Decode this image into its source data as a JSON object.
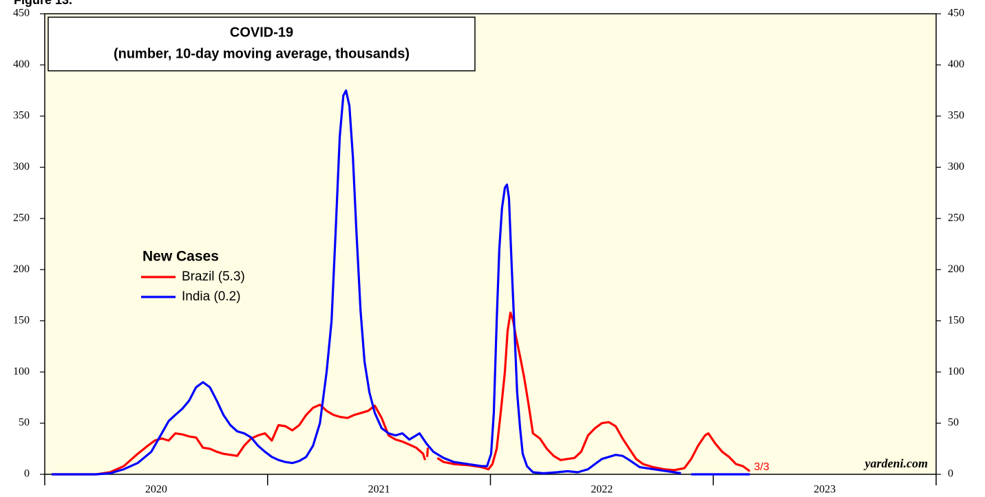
{
  "chart_data": {
    "type": "line",
    "figure_label": "Figure 13.",
    "title": "COVID-19",
    "subtitle": "(number, 10-day moving average, thousands)",
    "legend_title": "New Cases",
    "end_label": "3/3",
    "watermark": "yardeni.com",
    "xlim": [
      2020,
      2024
    ],
    "xbounds": [
      2020,
      2021,
      2022,
      2023,
      2024
    ],
    "xticks": [
      {
        "value": 2020.5,
        "label": "2020"
      },
      {
        "value": 2021.5,
        "label": "2021"
      },
      {
        "value": 2022.5,
        "label": "2022"
      },
      {
        "value": 2023.5,
        "label": "2023"
      }
    ],
    "ylim": [
      0,
      450
    ],
    "yticks": [
      0,
      50,
      100,
      150,
      200,
      250,
      300,
      350,
      400,
      450
    ],
    "y2lim": [
      0,
      450
    ],
    "y2ticks": [
      0,
      50,
      100,
      150,
      200,
      250,
      300,
      350,
      400,
      450
    ],
    "background": "#fffde3",
    "series": [
      {
        "name": "Brazil (5.3)",
        "color": "#ff0000",
        "x": [
          2020.031,
          2020.231,
          2020.293,
          2020.355,
          2020.417,
          2020.463,
          2020.494,
          2020.525,
          2020.556,
          2020.586,
          2020.617,
          2020.648,
          2020.679,
          2020.71,
          2020.741,
          2020.772,
          2020.802,
          2020.833,
          2020.864,
          2020.895,
          2020.926,
          2020.957,
          2020.988,
          2021.019,
          2021.049,
          2021.08,
          2021.111,
          2021.142,
          2021.173,
          2021.204,
          2021.235,
          2021.265,
          2021.296,
          2021.327,
          2021.358,
          2021.389,
          2021.42,
          2021.451,
          2021.481,
          2021.512,
          2021.543,
          2021.574,
          2021.605,
          2021.636,
          2021.667,
          2021.698,
          2021.707,
          2021.712,
          2021.716,
          2021.719,
          2021.74,
          2021.762,
          2021.79,
          2021.836,
          2021.898,
          2021.96,
          2021.991,
          2022.009,
          2022.028,
          2022.046,
          2022.065,
          2022.077,
          2022.09,
          2022.102,
          2022.114,
          2022.133,
          2022.151,
          2022.17,
          2022.191,
          2022.222,
          2022.253,
          2022.284,
          2022.315,
          2022.346,
          2022.377,
          2022.407,
          2022.438,
          2022.469,
          2022.5,
          2022.531,
          2022.562,
          2022.593,
          2022.623,
          2022.654,
          2022.685,
          2022.731,
          2022.778,
          2022.824,
          2022.87,
          2022.901,
          2022.932,
          2022.963,
          2022.978,
          2023.009,
          2023.04,
          2023.071,
          2023.102,
          2023.133,
          2023.164
        ],
        "values": [
          0,
          0,
          2,
          8,
          20,
          28,
          33,
          35,
          33,
          40,
          39,
          37,
          36,
          26,
          25,
          22,
          20,
          19,
          18,
          28,
          35,
          38,
          40,
          33,
          48,
          47,
          43,
          48,
          58,
          65,
          68,
          62,
          58,
          56,
          55,
          58,
          60,
          62,
          67,
          55,
          38,
          34,
          32,
          29,
          26,
          20,
          14,
          null,
          17,
          26,
          null,
          16,
          12,
          10,
          9,
          7,
          5,
          10,
          25,
          60,
          100,
          140,
          158,
          150,
          135,
          115,
          95,
          70,
          40,
          35,
          25,
          18,
          14,
          15,
          16,
          22,
          38,
          45,
          50,
          51,
          47,
          35,
          25,
          15,
          10,
          7,
          5,
          4,
          6,
          15,
          28,
          38,
          40,
          30,
          22,
          17,
          10,
          8,
          3
        ]
      },
      {
        "name": "India (0.2)",
        "color": "#0000ff",
        "x": [
          2020.031,
          2020.231,
          2020.293,
          2020.355,
          2020.417,
          2020.478,
          2020.525,
          2020.556,
          2020.586,
          2020.617,
          2020.648,
          2020.679,
          2020.71,
          2020.741,
          2020.772,
          2020.802,
          2020.833,
          2020.864,
          2020.895,
          2020.926,
          2020.957,
          2020.988,
          2021.019,
          2021.049,
          2021.08,
          2021.111,
          2021.142,
          2021.173,
          2021.204,
          2021.235,
          2021.265,
          2021.287,
          2021.306,
          2021.324,
          2021.34,
          2021.352,
          2021.367,
          2021.383,
          2021.398,
          2021.417,
          2021.435,
          2021.457,
          2021.481,
          2021.512,
          2021.543,
          2021.574,
          2021.605,
          2021.636,
          2021.667,
          2021.682,
          2021.713,
          2021.744,
          2021.79,
          2021.836,
          2021.898,
          2021.96,
          2021.985,
          2022.003,
          2022.015,
          2022.028,
          2022.04,
          2022.052,
          2022.065,
          2022.074,
          2022.083,
          2022.096,
          2022.108,
          2022.12,
          2022.133,
          2022.145,
          2022.164,
          2022.191,
          2022.238,
          2022.299,
          2022.346,
          2022.392,
          2022.438,
          2022.469,
          2022.5,
          2022.531,
          2022.562,
          2022.593,
          2022.623,
          2022.67,
          2022.731,
          2022.793,
          2022.855,
          2022.87,
          2022.901,
          2023.164
        ],
        "values": [
          0,
          0,
          1,
          5,
          11,
          22,
          40,
          52,
          58,
          64,
          72,
          85,
          90,
          85,
          72,
          58,
          48,
          42,
          40,
          36,
          28,
          22,
          17,
          14,
          12,
          11,
          13,
          17,
          28,
          50,
          100,
          150,
          240,
          330,
          370,
          375,
          360,
          310,
          240,
          160,
          110,
          80,
          60,
          45,
          40,
          38,
          40,
          34,
          38,
          40,
          30,
          22,
          16,
          12,
          10,
          8,
          8,
          20,
          60,
          150,
          220,
          260,
          280,
          283,
          270,
          200,
          140,
          80,
          45,
          20,
          8,
          2,
          1,
          2,
          3,
          2,
          5,
          10,
          15,
          17,
          19,
          18,
          14,
          7,
          5,
          3,
          1,
          null,
          0,
          0
        ]
      }
    ]
  }
}
